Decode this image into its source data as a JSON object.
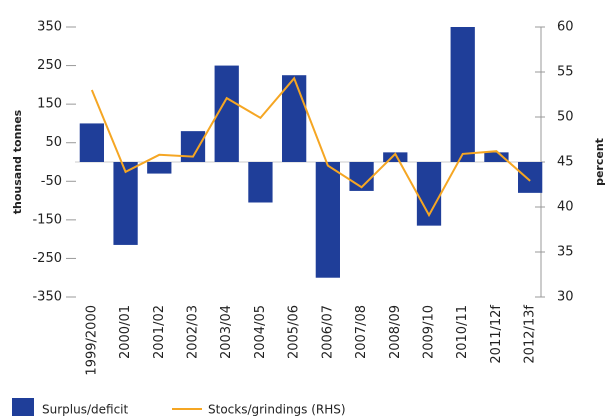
{
  "chart_data": {
    "type": "bar_line",
    "y_label": "thousand tonnes",
    "y2_label": "percent",
    "categories": [
      "1999/2000",
      "2000/01",
      "2001/02",
      "2002/03",
      "2003/04",
      "2004/05",
      "2005/06",
      "2006/07",
      "2007/08",
      "2008/09",
      "2009/10",
      "2010/11",
      "2011/12f",
      "2012/13f"
    ],
    "series": [
      {
        "name": "Surplus/deficit",
        "type": "bar",
        "color": "#1f3e99",
        "values": [
          100,
          -215,
          -30,
          80,
          250,
          -105,
          225,
          -300,
          -75,
          25,
          -165,
          350,
          25,
          -80
        ]
      },
      {
        "name": "Stocks/grindings (RHS)",
        "type": "line",
        "axis": "y2",
        "color": "#f5a623",
        "values": [
          53,
          43.9,
          45.8,
          45.6,
          52.1,
          49.9,
          54.3,
          44.6,
          42.2,
          45.9,
          39.1,
          45.9,
          46.2,
          42.9
        ]
      }
    ],
    "ylim": [
      -350,
      350
    ],
    "yticks": [
      -350,
      -250,
      -150,
      -50,
      50,
      150,
      250,
      350
    ],
    "y2lim": [
      30,
      60
    ],
    "y2ticks": [
      30,
      35,
      40,
      45,
      50,
      55,
      60
    ]
  }
}
